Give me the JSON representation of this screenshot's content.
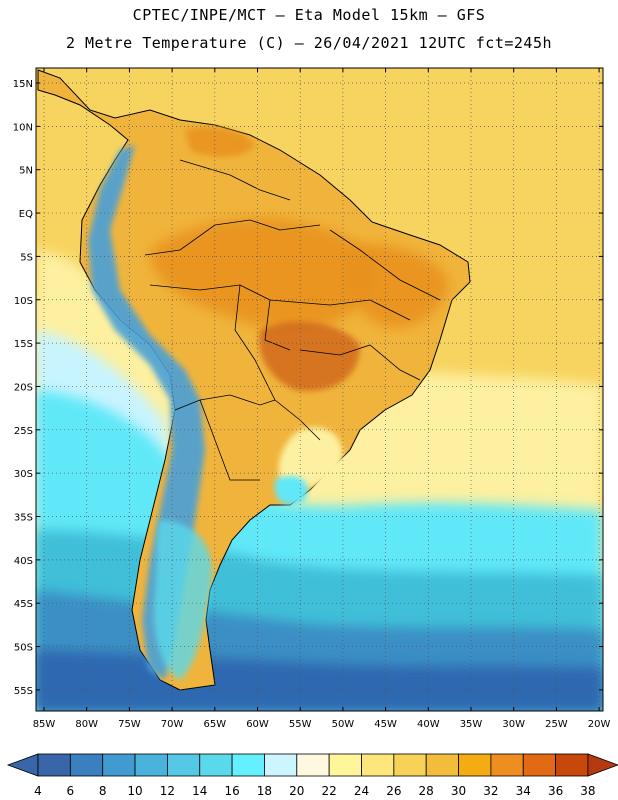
{
  "title": {
    "line1": "CPTEC/INPE/MCT –  Eta Model 15km – GFS",
    "line2": "2 Metre Temperature (C) – 26/04/2021 12UTC fct=245h"
  },
  "colors": {
    "ocean_tropical": "#f7d460",
    "land_warm": "#f0b43c",
    "land_hot": "#e8901c",
    "hotspot": "#d26a1e",
    "subtropical": "#fdf0a0",
    "cool_light": "#c8f4ff",
    "cyan": "#60e8f8",
    "teal": "#3fbfd8",
    "blue_mid": "#3b8fc4",
    "blue_deep": "#2f68b0",
    "andes": "#4aa0d8",
    "border": "#000000",
    "grid": "#555555"
  },
  "axes": {
    "lat_labels": [
      "15N",
      "10N",
      "5N",
      "EQ",
      "5S",
      "10S",
      "15S",
      "20S",
      "25S",
      "30S",
      "35S",
      "40S",
      "45S",
      "50S",
      "55S"
    ],
    "lon_labels": [
      "85W",
      "80W",
      "75W",
      "70W",
      "65W",
      "60W",
      "55W",
      "50W",
      "45W",
      "40W",
      "35W",
      "30W",
      "25W",
      "20W"
    ]
  },
  "colorbar": {
    "values": [
      "4",
      "6",
      "8",
      "10",
      "12",
      "14",
      "16",
      "18",
      "20",
      "22",
      "24",
      "26",
      "28",
      "30",
      "32",
      "34",
      "36",
      "38"
    ],
    "colors": [
      "#3866a9",
      "#3b7fbf",
      "#419bd0",
      "#4bb2dc",
      "#54c8e4",
      "#5ad9ec",
      "#64f0ff",
      "#cdf5ff",
      "#fff8e1",
      "#fff59b",
      "#fde67b",
      "#f8d258",
      "#f2bd3a",
      "#f5ab12",
      "#ee8d20",
      "#e26a14",
      "#c8470a"
    ],
    "low_color": "#3866a9",
    "high_color": "#b63a10"
  }
}
